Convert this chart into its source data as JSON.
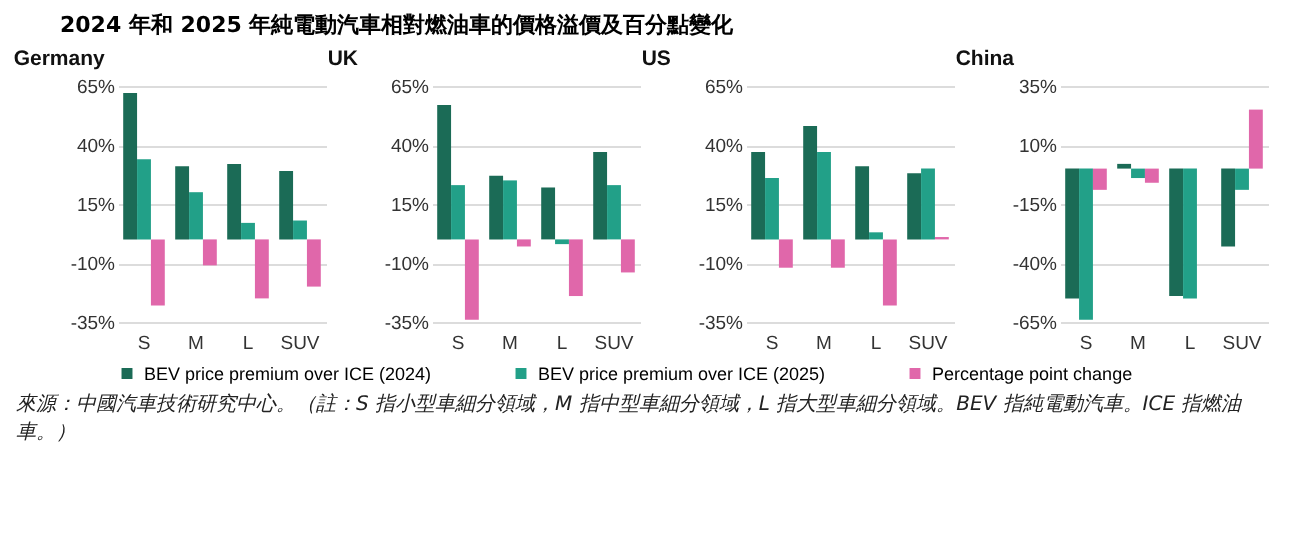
{
  "chart_data": [
    {
      "type": "other",
      "title": "2024 年和 2025 年純電動汽車相對燃油車的價格溢價及百分點變化",
      "annotations": [
        "來源：中國汽車技術研究中心。（註：S 指小型車細分領域，M 指中型車細分領域，L 指大型車細分領域。BEV 指純電動汽車。ICE 指燃油車。）"
      ]
    },
    {
      "type": "bar",
      "title": "Germany",
      "categories": [
        "S",
        "M",
        "L",
        "SUV"
      ],
      "ylim": [
        -35,
        65
      ],
      "yticks": [
        {
          "value": 65,
          "label": "65%"
        },
        {
          "value": 40,
          "label": "40%"
        },
        {
          "value": 15,
          "label": "15%"
        },
        {
          "value": -10,
          "label": "-10%"
        },
        {
          "value": -35,
          "label": "-35%"
        }
      ],
      "grid": "y",
      "legend": "bottom",
      "series": [
        {
          "name": "BEV price premium over ICE (2024)",
          "color": "#1b6b56",
          "values": [
            62,
            31,
            32,
            29
          ]
        },
        {
          "name": "BEV price premium over ICE (2025)",
          "color": "#22a088",
          "values": [
            34,
            20,
            7,
            8
          ]
        },
        {
          "name": "Percentage point change",
          "color": "#e067aa",
          "values": [
            -28,
            -11,
            -25,
            -20
          ]
        }
      ]
    },
    {
      "type": "bar",
      "title": "UK",
      "categories": [
        "S",
        "M",
        "L",
        "SUV"
      ],
      "ylim": [
        -35,
        65
      ],
      "yticks": [
        {
          "value": 65,
          "label": "65%"
        },
        {
          "value": 40,
          "label": "40%"
        },
        {
          "value": 15,
          "label": "15%"
        },
        {
          "value": -10,
          "label": "-10%"
        },
        {
          "value": -35,
          "label": "-35%"
        }
      ],
      "grid": "y",
      "legend": "bottom",
      "series": [
        {
          "name": "BEV price premium over ICE (2024)",
          "color": "#1b6b56",
          "values": [
            57,
            27,
            22,
            37
          ]
        },
        {
          "name": "BEV price premium over ICE (2025)",
          "color": "#22a088",
          "values": [
            23,
            25,
            -2,
            23
          ]
        },
        {
          "name": "Percentage point change",
          "color": "#e067aa",
          "values": [
            -34,
            -3,
            -24,
            -14
          ]
        }
      ]
    },
    {
      "type": "bar",
      "title": "US",
      "categories": [
        "S",
        "M",
        "L",
        "SUV"
      ],
      "ylim": [
        -35,
        65
      ],
      "yticks": [
        {
          "value": 65,
          "label": "65%"
        },
        {
          "value": 40,
          "label": "40%"
        },
        {
          "value": 15,
          "label": "15%"
        },
        {
          "value": -10,
          "label": "-10%"
        },
        {
          "value": -35,
          "label": "-35%"
        }
      ],
      "grid": "y",
      "legend": "bottom",
      "series": [
        {
          "name": "BEV price premium over ICE (2024)",
          "color": "#1b6b56",
          "values": [
            37,
            48,
            31,
            28
          ]
        },
        {
          "name": "BEV price premium over ICE (2025)",
          "color": "#22a088",
          "values": [
            26,
            37,
            3,
            30
          ]
        },
        {
          "name": "Percentage point change",
          "color": "#e067aa",
          "values": [
            -12,
            -12,
            -28,
            1
          ]
        }
      ]
    },
    {
      "type": "bar",
      "title": "China",
      "categories": [
        "S",
        "M",
        "L",
        "SUV"
      ],
      "ylim": [
        -65,
        35
      ],
      "yticks": [
        {
          "value": 35,
          "label": "35%"
        },
        {
          "value": 10,
          "label": "10%"
        },
        {
          "value": -15,
          "label": "-15%"
        },
        {
          "value": -40,
          "label": "-40%"
        },
        {
          "value": -65,
          "label": "-65%"
        }
      ],
      "grid": "y",
      "legend": "bottom",
      "series": [
        {
          "name": "BEV price premium over ICE (2024)",
          "color": "#1b6b56",
          "values": [
            -55,
            2,
            -54,
            -33
          ]
        },
        {
          "name": "BEV price premium over ICE (2025)",
          "color": "#22a088",
          "values": [
            -64,
            -4,
            -55,
            -9
          ]
        },
        {
          "name": "Percentage point change",
          "color": "#e067aa",
          "values": [
            -9,
            -6,
            null,
            25
          ]
        }
      ]
    }
  ]
}
